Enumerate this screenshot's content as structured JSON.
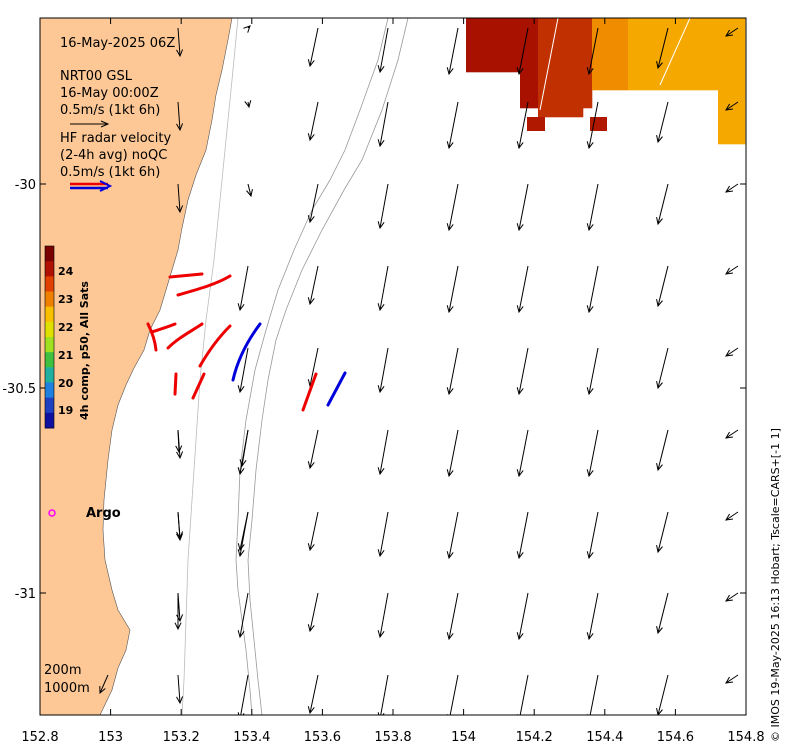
{
  "map": {
    "datetime": "16-May-2025 06Z",
    "legend": {
      "model_title": "NRT00 GSL",
      "model_time": "16-May 00:00Z",
      "model_scale": "0.5m/s (1kt 6h)",
      "radar_line1": "HF radar velocity",
      "radar_line2": "(2-4h avg) noQC",
      "radar_scale": "0.5m/s (1kt 6h)"
    },
    "colorbar": {
      "label": "4h comp, p50, All Sats",
      "ticks": [
        "24",
        "23",
        "22",
        "21",
        "20",
        "19"
      ],
      "colors_top_to_bottom": [
        "#7a0000",
        "#b01000",
        "#e04000",
        "#f08000",
        "#f8c000",
        "#e0e000",
        "#a0e020",
        "#40c040",
        "#20b0a0",
        "#2080e0",
        "#2040c0",
        "#1010a0"
      ]
    },
    "x_axis": {
      "ticks": [
        "152.8",
        "153",
        "153.2",
        "153.4",
        "153.6",
        "153.8",
        "154",
        "154.2",
        "154.4",
        "154.6",
        "154.8"
      ]
    },
    "y_axis": {
      "ticks": [
        "-30",
        "-30.5",
        "-31"
      ]
    },
    "argo_label": "Argo",
    "depth_labels": [
      "200m",
      "1000m"
    ],
    "credit": "© IMOS 19-May-2025 16:13 Hobart; Tscale=CARS+[-1 1]",
    "colors": {
      "land": "#fdc896",
      "model_arrow": "#000000",
      "radar_red": "#ee0000",
      "radar_blue": "#0000dd",
      "argo": "#ff00ff"
    }
  }
}
